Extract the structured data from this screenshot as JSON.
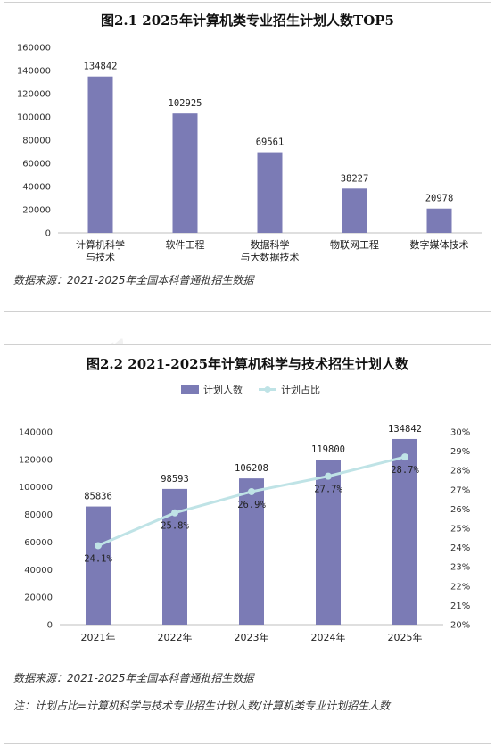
{
  "watermark": {
    "text": "易度排名",
    "sub": "EDU Ranking.cn"
  },
  "figure1": {
    "title": "图2.1 2025年计算机类专业招生计划人数TOP5",
    "source": "数据来源：2021-2025年全国本科普通批招生数据"
  },
  "figure2": {
    "title": "图2.2 2021-2025年计算机科学与技术招生计划人数",
    "source": "数据来源：2021-2025年全国本科普通批招生数据",
    "note": "注：计划占比=计算机科学与技术专业招生计划人数/计算机类专业计划招生人数"
  },
  "chart_data": [
    {
      "type": "bar",
      "title": "图2.1 2025年计算机类专业招生计划人数TOP5",
      "categories": [
        "计算机科学与技术",
        "软件工程",
        "数据科学与大数据技术",
        "物联网工程",
        "数字媒体技术"
      ],
      "category_lines": [
        [
          "计算机科学",
          "与技术"
        ],
        [
          "软件工程"
        ],
        [
          "数据科学",
          "与大数据技术"
        ],
        [
          "物联网工程"
        ],
        [
          "数字媒体技术"
        ]
      ],
      "values": [
        134842,
        102925,
        69561,
        38227,
        20978
      ],
      "data_labels": [
        "134842",
        "102925",
        "69561",
        "38227",
        "20978"
      ],
      "ylim": [
        0,
        160000
      ],
      "yticks": [
        "0",
        "20000",
        "40000",
        "60000",
        "80000",
        "100000",
        "120000",
        "140000",
        "160000"
      ],
      "grid": false,
      "bar_color": "#7b7bb5"
    },
    {
      "type": "bar",
      "title": "图2.2 2021-2025年计算机科学与技术招生计划人数",
      "categories": [
        "2021年",
        "2022年",
        "2023年",
        "2024年",
        "2025年"
      ],
      "series": [
        {
          "name": "计划人数",
          "type": "bar",
          "axis": "left",
          "values": [
            85836,
            98593,
            106208,
            119800,
            134842
          ],
          "labels": [
            "85836",
            "98593",
            "106208",
            "119800",
            "134842"
          ],
          "color": "#7b7bb5"
        },
        {
          "name": "计划占比",
          "type": "line",
          "axis": "right",
          "values": [
            24.1,
            25.8,
            26.9,
            27.7,
            28.7
          ],
          "labels": [
            "24.1%",
            "25.8%",
            "26.9%",
            "27.7%",
            "28.7%"
          ],
          "color": "#bfe3e6"
        }
      ],
      "ylim": [
        0,
        140000
      ],
      "yticks": [
        "0",
        "20000",
        "40000",
        "60000",
        "80000",
        "100000",
        "120000",
        "140000"
      ],
      "y2lim": [
        20,
        30
      ],
      "y2ticks": [
        "20%",
        "21%",
        "22%",
        "23%",
        "24%",
        "25%",
        "26%",
        "27%",
        "28%",
        "29%",
        "30%"
      ],
      "legend": "top-center",
      "grid": false
    }
  ]
}
